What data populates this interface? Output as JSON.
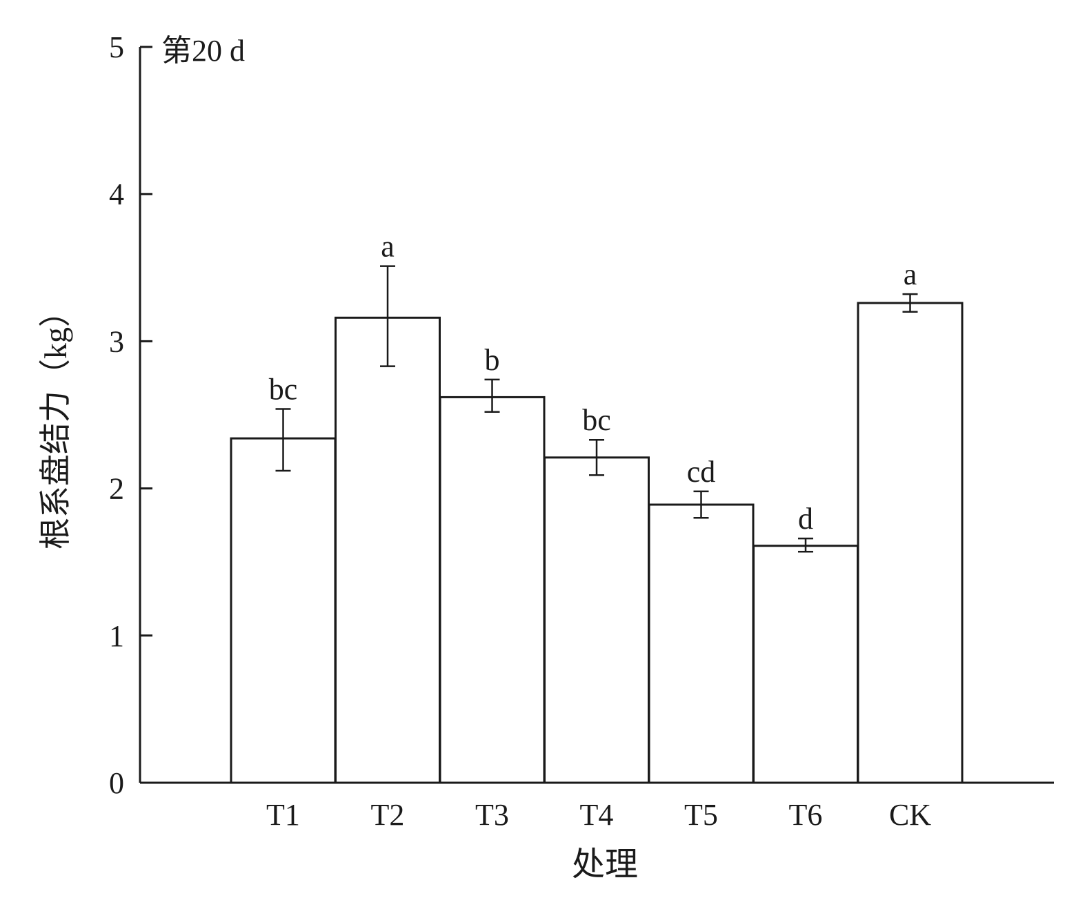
{
  "chart_data": {
    "type": "bar",
    "panel_label": "第20 d",
    "xlabel": "处理",
    "ylabel": "根系盘结力（kg）",
    "categories": [
      "T1",
      "T2",
      "T3",
      "T4",
      "T5",
      "T6",
      "CK"
    ],
    "values": [
      2.34,
      3.16,
      2.62,
      2.21,
      1.89,
      1.61,
      3.26
    ],
    "error_low": [
      2.12,
      2.83,
      2.52,
      2.09,
      1.8,
      1.57,
      3.2
    ],
    "error_high": [
      2.54,
      3.51,
      2.74,
      2.33,
      1.98,
      1.66,
      3.32
    ],
    "significance_letters": [
      "bc",
      "a",
      "b",
      "bc",
      "cd",
      "d",
      "a"
    ],
    "ylim": [
      0,
      5
    ],
    "yticks": [
      0,
      1,
      2,
      3,
      4,
      5
    ],
    "grid": false,
    "legend": "none",
    "colors": {
      "bar_fill": "#ffffff",
      "stroke": "#1a1a1a",
      "text": "#1a1a1a"
    }
  }
}
